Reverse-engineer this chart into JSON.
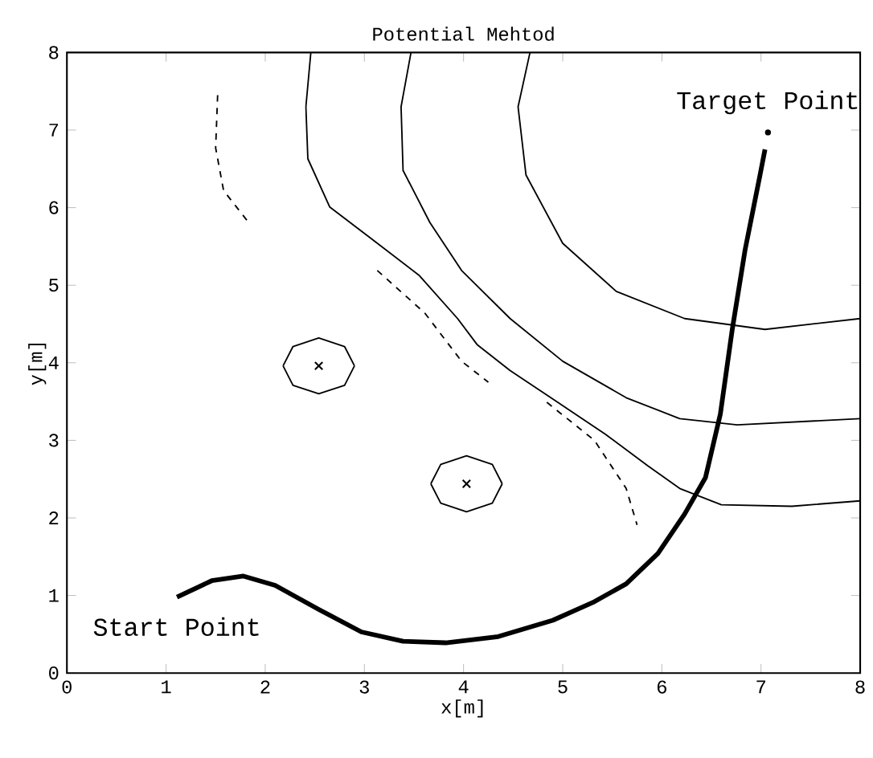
{
  "chart_data": {
    "type": "line",
    "title": "Potential Mehtod",
    "xlabel": "x[m]",
    "ylabel": "y[m]",
    "xlim": [
      0,
      8
    ],
    "ylim": [
      0,
      8
    ],
    "xticks": [
      0,
      1,
      2,
      3,
      4,
      5,
      6,
      7,
      8
    ],
    "yticks": [
      0,
      1,
      2,
      3,
      4,
      5,
      6,
      7,
      8
    ],
    "series": [
      {
        "type": "line",
        "color": "#000000",
        "line_style": "solid",
        "x": [
          1.11,
          1.46,
          1.78,
          2.1,
          2.54,
          2.97,
          3.39,
          3.82,
          4.35,
          4.9,
          5.32,
          5.64,
          5.96,
          6.23,
          6.44,
          6.59,
          6.71,
          6.84,
          6.99,
          7.04
        ],
        "values": [
          0.98,
          1.19,
          1.25,
          1.13,
          0.82,
          0.53,
          0.41,
          0.39,
          0.47,
          0.68,
          0.92,
          1.15,
          1.54,
          2.05,
          2.52,
          3.34,
          4.43,
          5.46,
          6.42,
          6.75
        ]
      },
      {
        "type": "line",
        "color": "#000000",
        "line_style": "solid",
        "x": [
          2.46,
          2.41,
          2.43,
          2.65,
          3.07,
          3.55,
          3.94,
          4.14,
          4.47,
          4.95,
          5.43,
          5.86,
          6.18,
          6.6,
          7.31,
          8.0
        ],
        "values": [
          8.0,
          7.3,
          6.63,
          6.01,
          5.6,
          5.13,
          4.57,
          4.23,
          3.9,
          3.49,
          3.08,
          2.67,
          2.38,
          2.17,
          2.15,
          2.22
        ]
      },
      {
        "type": "line",
        "color": "#000000",
        "line_style": "solid",
        "x": [
          3.47,
          3.37,
          3.39,
          3.66,
          3.98,
          4.47,
          5.0,
          5.64,
          6.18,
          6.76,
          8.0
        ],
        "values": [
          8.0,
          7.3,
          6.48,
          5.81,
          5.19,
          4.57,
          4.02,
          3.55,
          3.28,
          3.2,
          3.28
        ]
      },
      {
        "type": "line",
        "color": "#000000",
        "line_style": "solid",
        "x": [
          4.67,
          4.55,
          4.63,
          5.0,
          5.54,
          6.23,
          7.04,
          8.0
        ],
        "values": [
          8.0,
          7.3,
          6.42,
          5.54,
          4.92,
          4.57,
          4.43,
          4.57
        ]
      },
      {
        "type": "line",
        "color": "#000000",
        "line_style": "dashed",
        "x": [
          1.52,
          1.5,
          1.58,
          1.82
        ],
        "values": [
          7.45,
          6.77,
          6.22,
          5.83
        ]
      },
      {
        "type": "line",
        "color": "#000000",
        "line_style": "dashed",
        "x": [
          3.13,
          3.61,
          3.98,
          4.25
        ],
        "values": [
          5.19,
          4.64,
          4.02,
          3.75
        ]
      },
      {
        "type": "line",
        "color": "#000000",
        "line_style": "dashed",
        "x": [
          4.84,
          5.32,
          5.64,
          5.75
        ],
        "values": [
          3.49,
          3.0,
          2.38,
          1.91
        ]
      },
      {
        "type": "line",
        "color": "#000000",
        "line_style": "solid",
        "x": [
          2.18,
          2.28,
          2.54,
          2.8,
          2.9
        ],
        "values": [
          3.96,
          4.21,
          4.32,
          4.21,
          3.96
        ]
      },
      {
        "type": "line",
        "color": "#000000",
        "line_style": "solid",
        "x": [
          2.18,
          2.28,
          2.54,
          2.8,
          2.9
        ],
        "values": [
          3.96,
          3.71,
          3.6,
          3.71,
          3.96
        ]
      },
      {
        "type": "line",
        "color": "#000000",
        "line_style": "solid",
        "x": [
          3.67,
          3.77,
          4.03,
          4.29,
          4.39
        ],
        "values": [
          2.44,
          2.69,
          2.8,
          2.69,
          2.44
        ]
      },
      {
        "type": "line",
        "color": "#000000",
        "line_style": "solid",
        "x": [
          3.67,
          3.77,
          4.03,
          4.29,
          4.39
        ],
        "values": [
          2.44,
          2.19,
          2.08,
          2.19,
          2.44
        ]
      },
      {
        "type": "scatter",
        "color": "#000000",
        "marker": "cross",
        "x": [
          2.54,
          4.03
        ],
        "values": [
          3.96,
          2.44
        ]
      },
      {
        "type": "scatter",
        "color": "#000000",
        "marker": "circle",
        "x": [
          7.07
        ],
        "values": [
          6.97
        ]
      }
    ],
    "annotations": [
      {
        "text": "Start Point",
        "x": 1.11,
        "y": 0.98
      },
      {
        "text": "Target Point",
        "x": 7.07,
        "y": 6.97
      }
    ]
  }
}
